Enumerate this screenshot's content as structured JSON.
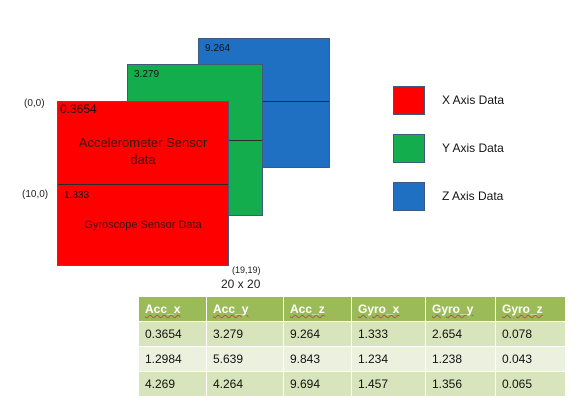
{
  "layers": {
    "z": {
      "value": "9.264",
      "color": "#1f6fc2"
    },
    "y": {
      "value": "3.279",
      "color": "#13ad4e"
    },
    "x": {
      "value": "0.3654",
      "color": "#ff0000",
      "title_line1": "Accelerometer Sensor",
      "title_line2": "data",
      "lower_value": "1.333",
      "lower_label": "Gyroscope Sensor Data"
    }
  },
  "coordinates": {
    "origin": "(0,0)",
    "mid": "(10,0)",
    "end": "(19,19)",
    "size": "20 x 20"
  },
  "legend": [
    {
      "label": "X Axis Data",
      "color": "#ff0000"
    },
    {
      "label": "Y Axis Data",
      "color": "#13ad4e"
    },
    {
      "label": "Z Axis Data",
      "color": "#1f6fc2"
    }
  ],
  "table": {
    "headers": [
      "Acc_x",
      "Acc_y",
      "Acc_z",
      "Gyro_x",
      "Gyro_y",
      "Gyro_z"
    ],
    "rows": [
      [
        "0.3654",
        "3.279",
        "9.264",
        "1.333",
        "2.654",
        "0.078"
      ],
      [
        "1.2984",
        "5.639",
        "9.843",
        "1.234",
        "1.238",
        "0.043"
      ],
      [
        "4.269",
        "4.264",
        "9.694",
        "1.457",
        "1.356",
        "0.065"
      ]
    ]
  }
}
